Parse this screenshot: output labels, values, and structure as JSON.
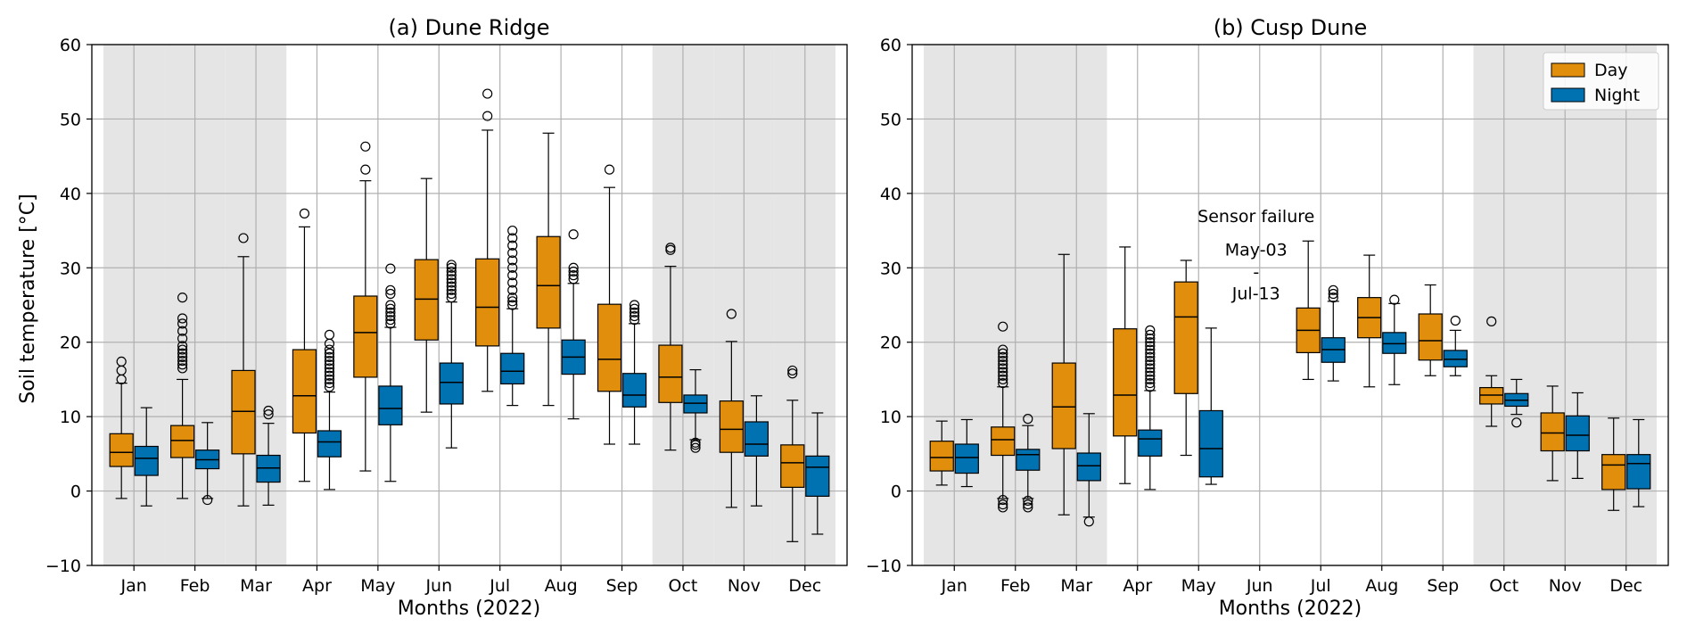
{
  "ylabel": "Soil temperature [°C]",
  "legend": [
    {
      "label": "Day",
      "color": "#E08E0B"
    },
    {
      "label": "Night",
      "color": "#0072B2"
    }
  ],
  "chart_data": [
    {
      "type": "box",
      "title": "(a) Dune Ridge",
      "xlabel": "Months (2022)",
      "ylabel": "Soil temperature [°C]",
      "ylim": [
        -10,
        60
      ],
      "yticks": [
        -10,
        0,
        10,
        20,
        30,
        40,
        50,
        60
      ],
      "grid": true,
      "categories": [
        "Jan",
        "Feb",
        "Mar",
        "Apr",
        "May",
        "Jun",
        "Jul",
        "Aug",
        "Sep",
        "Oct",
        "Nov",
        "Dec"
      ],
      "shaded_months": [
        "Jan",
        "Feb",
        "Mar",
        "Oct",
        "Nov",
        "Dec"
      ],
      "series": [
        {
          "name": "Day",
          "color": "#E08E0B",
          "boxes": [
            {
              "month": "Jan",
              "whislo": -1,
              "q1": 3.3,
              "med": 5.2,
              "q3": 7.7,
              "whishi": 14.5,
              "fliers": [
                15,
                16.2,
                17.4
              ]
            },
            {
              "month": "Feb",
              "whislo": -1,
              "q1": 4.5,
              "med": 6.8,
              "q3": 8.8,
              "whishi": 15,
              "fliers": [
                16.5,
                17,
                17.5,
                18,
                18.5,
                19,
                19.5,
                20.5,
                21.5,
                22.5,
                23.2,
                26
              ]
            },
            {
              "month": "Mar",
              "whislo": -2,
              "q1": 5,
              "med": 10.7,
              "q3": 16.2,
              "whishi": 31.5,
              "fliers": [
                34
              ]
            },
            {
              "month": "Apr",
              "whislo": 1.3,
              "q1": 7.8,
              "med": 12.8,
              "q3": 19,
              "whishi": 35.5,
              "fliers": [
                37.3
              ]
            },
            {
              "month": "May",
              "whislo": 2.7,
              "q1": 15.3,
              "med": 21.3,
              "q3": 26.2,
              "whishi": 41.7,
              "fliers": [
                43.2,
                46.3
              ]
            },
            {
              "month": "Jun",
              "whislo": 10.6,
              "q1": 20.3,
              "med": 25.8,
              "q3": 31.1,
              "whishi": 42,
              "fliers": []
            },
            {
              "month": "Jul",
              "whislo": 13.4,
              "q1": 19.5,
              "med": 24.7,
              "q3": 31.2,
              "whishi": 48.5,
              "fliers": [
                50.4,
                53.4
              ]
            },
            {
              "month": "Aug",
              "whislo": 11.5,
              "q1": 21.9,
              "med": 27.6,
              "q3": 34.2,
              "whishi": 48.1,
              "fliers": []
            },
            {
              "month": "Sep",
              "whislo": 6.3,
              "q1": 13.4,
              "med": 17.7,
              "q3": 25.1,
              "whishi": 40.8,
              "fliers": [
                43.2
              ]
            },
            {
              "month": "Oct",
              "whislo": 5.5,
              "q1": 11.9,
              "med": 15.3,
              "q3": 19.6,
              "whishi": 30.2,
              "fliers": [
                32.4,
                32.7
              ]
            },
            {
              "month": "Nov",
              "whislo": -2.2,
              "q1": 5.2,
              "med": 8.3,
              "q3": 12.1,
              "whishi": 20.1,
              "fliers": [
                23.8
              ]
            },
            {
              "month": "Dec",
              "whislo": -6.8,
              "q1": 0.5,
              "med": 3.8,
              "q3": 6.2,
              "whishi": 12.2,
              "fliers": [
                15.8,
                16.2
              ]
            }
          ]
        },
        {
          "name": "Night",
          "color": "#0072B2",
          "boxes": [
            {
              "month": "Jan",
              "whislo": -2,
              "q1": 2.1,
              "med": 4.4,
              "q3": 6,
              "whishi": 11.2,
              "fliers": []
            },
            {
              "month": "Feb",
              "whislo": -1,
              "q1": 3,
              "med": 4.2,
              "q3": 5.5,
              "whishi": 9.2,
              "fliers": [
                -1.2
              ]
            },
            {
              "month": "Mar",
              "whislo": -1.9,
              "q1": 1.2,
              "med": 3.1,
              "q3": 4.8,
              "whishi": 9.1,
              "fliers": [
                10.3,
                10.8
              ]
            },
            {
              "month": "Apr",
              "whislo": 0.2,
              "q1": 4.6,
              "med": 6.6,
              "q3": 8.1,
              "whishi": 13.3,
              "fliers": [
                14,
                14.5,
                15,
                15.5,
                16,
                16.5,
                17,
                17.5,
                18,
                18.5,
                19,
                19.8,
                21
              ]
            },
            {
              "month": "May",
              "whislo": 1.3,
              "q1": 8.9,
              "med": 11.1,
              "q3": 14.1,
              "whishi": 22,
              "fliers": [
                22.5,
                23,
                23.5,
                24,
                24.5,
                25,
                26.5,
                27,
                29.9
              ]
            },
            {
              "month": "Jun",
              "whislo": 5.8,
              "q1": 11.7,
              "med": 14.6,
              "q3": 17.2,
              "whishi": 25.4,
              "fliers": [
                26,
                26.5,
                27,
                27.5,
                28,
                28.5,
                29,
                29.5,
                30,
                30.4
              ]
            },
            {
              "month": "Jul",
              "whislo": 11.5,
              "q1": 14.4,
              "med": 16.1,
              "q3": 18.5,
              "whishi": 24.5,
              "fliers": [
                25,
                25.5,
                26,
                27,
                28,
                29,
                30,
                31,
                32,
                33,
                34,
                35
              ]
            },
            {
              "month": "Aug",
              "whislo": 9.7,
              "q1": 15.7,
              "med": 18,
              "q3": 20.3,
              "whishi": 27.9,
              "fliers": [
                28.5,
                29,
                29.5,
                30,
                34.5
              ]
            },
            {
              "month": "Sep",
              "whislo": 6.3,
              "q1": 11.3,
              "med": 12.9,
              "q3": 15.8,
              "whishi": 22.5,
              "fliers": [
                23,
                23.5,
                24,
                24.5,
                25
              ]
            },
            {
              "month": "Oct",
              "whislo": 6.9,
              "q1": 10.5,
              "med": 11.8,
              "q3": 12.9,
              "whishi": 16.3,
              "fliers": [
                5.8,
                6.2,
                6.5
              ]
            },
            {
              "month": "Nov",
              "whislo": -2,
              "q1": 4.7,
              "med": 6.3,
              "q3": 9.3,
              "whishi": 12.8,
              "fliers": []
            },
            {
              "month": "Dec",
              "whislo": -5.8,
              "q1": -0.7,
              "med": 3.2,
              "q3": 4.7,
              "whishi": 10.5,
              "fliers": []
            }
          ]
        }
      ]
    },
    {
      "type": "box",
      "title": "(b) Cusp Dune",
      "xlabel": "Months (2022)",
      "ylabel": "",
      "ylim": [
        -10,
        60
      ],
      "yticks": [
        -10,
        0,
        10,
        20,
        30,
        40,
        50,
        60
      ],
      "grid": true,
      "legend_position": "top-right",
      "categories": [
        "Jan",
        "Feb",
        "Mar",
        "Apr",
        "May",
        "Jun",
        "Jul",
        "Aug",
        "Sep",
        "Oct",
        "Nov",
        "Dec"
      ],
      "shaded_months": [
        "Jan",
        "Feb",
        "Mar",
        "Oct",
        "Nov",
        "Dec"
      ],
      "annotation": {
        "lines": [
          "Sensor failure",
          "May-03",
          "-",
          "Jul-13"
        ],
        "month": "Jun",
        "y": [
          37,
          32.5,
          29.5,
          26.6
        ]
      },
      "series": [
        {
          "name": "Day",
          "color": "#E08E0B",
          "boxes": [
            {
              "month": "Jan",
              "whislo": 0.8,
              "q1": 2.7,
              "med": 4.5,
              "q3": 6.7,
              "whishi": 9.4,
              "fliers": []
            },
            {
              "month": "Feb",
              "whislo": -1,
              "q1": 4.8,
              "med": 6.9,
              "q3": 8.6,
              "whishi": 14,
              "fliers": [
                -2.2,
                -1.8,
                -1.2,
                14.5,
                15,
                15.5,
                16,
                16.5,
                17,
                17.5,
                18,
                18.5,
                19,
                22.1
              ]
            },
            {
              "month": "Mar",
              "whislo": -3.2,
              "q1": 5.7,
              "med": 11.3,
              "q3": 17.2,
              "whishi": 31.8,
              "fliers": []
            },
            {
              "month": "Apr",
              "whislo": 1,
              "q1": 7.4,
              "med": 12.9,
              "q3": 21.8,
              "whishi": 32.8,
              "fliers": []
            },
            {
              "month": "May",
              "whislo": 4.8,
              "q1": 13.1,
              "med": 23.4,
              "q3": 28.1,
              "whishi": 31,
              "fliers": []
            },
            {
              "month": "Jul",
              "whislo": 15,
              "q1": 18.6,
              "med": 21.6,
              "q3": 24.6,
              "whishi": 33.6,
              "fliers": []
            },
            {
              "month": "Aug",
              "whislo": 14,
              "q1": 20.6,
              "med": 23.3,
              "q3": 26,
              "whishi": 31.7,
              "fliers": []
            },
            {
              "month": "Sep",
              "whislo": 15.5,
              "q1": 17.6,
              "med": 20.2,
              "q3": 23.8,
              "whishi": 27.7,
              "fliers": []
            },
            {
              "month": "Oct",
              "whislo": 8.7,
              "q1": 11.7,
              "med": 12.9,
              "q3": 13.9,
              "whishi": 15.5,
              "fliers": [
                22.8
              ]
            },
            {
              "month": "Nov",
              "whislo": 1.4,
              "q1": 5.4,
              "med": 7.8,
              "q3": 10.5,
              "whishi": 14.1,
              "fliers": []
            },
            {
              "month": "Dec",
              "whislo": -2.6,
              "q1": 0.2,
              "med": 3.5,
              "q3": 4.9,
              "whishi": 9.8,
              "fliers": []
            }
          ]
        },
        {
          "name": "Night",
          "color": "#0072B2",
          "boxes": [
            {
              "month": "Jan",
              "whislo": 0.6,
              "q1": 2.4,
              "med": 4.5,
              "q3": 6.3,
              "whishi": 9.6,
              "fliers": []
            },
            {
              "month": "Feb",
              "whislo": -1,
              "q1": 2.8,
              "med": 4.9,
              "q3": 5.6,
              "whishi": 8.8,
              "fliers": [
                -2.2,
                -1.8,
                -1.3,
                9.7
              ]
            },
            {
              "month": "Mar",
              "whislo": -3.5,
              "q1": 1.4,
              "med": 3.4,
              "q3": 5.1,
              "whishi": 10.4,
              "fliers": [
                -4.1
              ]
            },
            {
              "month": "Apr",
              "whislo": 0.2,
              "q1": 4.7,
              "med": 7,
              "q3": 8.2,
              "whishi": 13.5,
              "fliers": [
                14,
                14.5,
                15,
                15.5,
                16,
                16.5,
                17,
                17.5,
                18,
                18.5,
                19,
                19.5,
                20,
                20.5,
                21,
                21.6
              ]
            },
            {
              "month": "May",
              "whislo": 0.9,
              "q1": 1.9,
              "med": 5.7,
              "q3": 10.8,
              "whishi": 21.9,
              "fliers": []
            },
            {
              "month": "Jul",
              "whislo": 14.8,
              "q1": 17.3,
              "med": 19,
              "q3": 20.6,
              "whishi": 25.5,
              "fliers": [
                26,
                26.5,
                27
              ]
            },
            {
              "month": "Aug",
              "whislo": 14.3,
              "q1": 18.5,
              "med": 19.8,
              "q3": 21.3,
              "whishi": 25.2,
              "fliers": [
                25.7
              ]
            },
            {
              "month": "Sep",
              "whislo": 15.5,
              "q1": 16.7,
              "med": 17.7,
              "q3": 18.9,
              "whishi": 21.6,
              "fliers": [
                22.9
              ]
            },
            {
              "month": "Oct",
              "whislo": 10.3,
              "q1": 11.4,
              "med": 12.2,
              "q3": 13.1,
              "whishi": 15,
              "fliers": [
                9.2
              ]
            },
            {
              "month": "Nov",
              "whislo": 1.7,
              "q1": 5.4,
              "med": 7.5,
              "q3": 10.1,
              "whishi": 13.2,
              "fliers": []
            },
            {
              "month": "Dec",
              "whislo": -2.1,
              "q1": 0.3,
              "med": 3.7,
              "q3": 4.9,
              "whishi": 9.6,
              "fliers": []
            }
          ]
        }
      ]
    }
  ]
}
